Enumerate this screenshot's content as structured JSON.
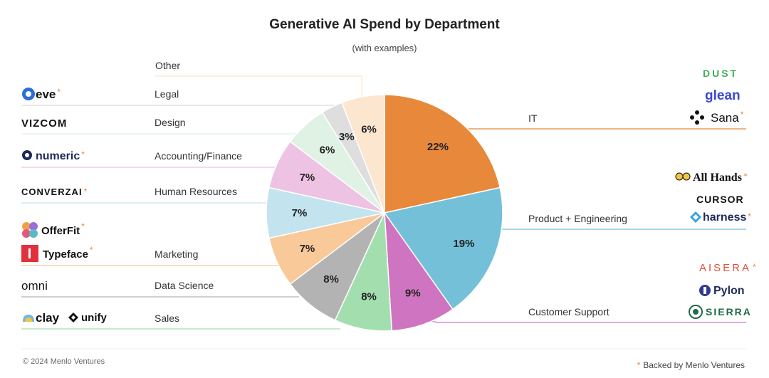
{
  "chart_data": {
    "type": "pie",
    "title": "Generative AI Spend by Department",
    "subtitle": "(with examples)",
    "categories": [
      "IT",
      "Product + Engineering",
      "Customer Support",
      "Sales",
      "Data Science",
      "Marketing",
      "Human Resources",
      "Accounting/Finance",
      "Design",
      "Legal",
      "Other"
    ],
    "values": [
      22,
      19,
      9,
      8,
      8,
      7,
      7,
      7,
      6,
      3,
      6
    ],
    "labels": [
      "22%",
      "19%",
      "9%",
      "8%",
      "8%",
      "7%",
      "7%",
      "7%",
      "6%",
      "3%",
      "6%"
    ],
    "colors": [
      "#e8883a",
      "#74c0d9",
      "#cf74c0",
      "#a3dfae",
      "#b3b3b3",
      "#f9c999",
      "#c3e4ef",
      "#eec2e2",
      "#dff2e3",
      "#dedede",
      "#fde6cf"
    ]
  },
  "departments": {
    "other": "Other",
    "legal": "Legal",
    "design": "Design",
    "accounting": "Accounting/Finance",
    "hr": "Human Resources",
    "marketing": "Marketing",
    "data_science": "Data Science",
    "sales": "Sales",
    "it": "IT",
    "product_eng": "Product + Engineering",
    "customer_support": "Customer Support"
  },
  "logos": {
    "eve": "eve",
    "vizcom": "VIZCOM",
    "numeric": "numeric",
    "converzai": "CONVERZAI",
    "offerfit": "OfferFit",
    "typeface": "Typeface",
    "omni": "omni",
    "clay": "clay",
    "unify": "unify",
    "dust": "DUST",
    "glean": "glean",
    "sana": "Sana",
    "allhands": "All Hands",
    "cursor": "CURSOR",
    "harness": "harness",
    "aisera": "AISERA",
    "pylon": "Pylon",
    "sierra": "SIERRA"
  },
  "backed_star": "*",
  "footer": {
    "copyright": "© 2024 Menlo Ventures",
    "backed": "Backed by Menlo Ventures"
  }
}
